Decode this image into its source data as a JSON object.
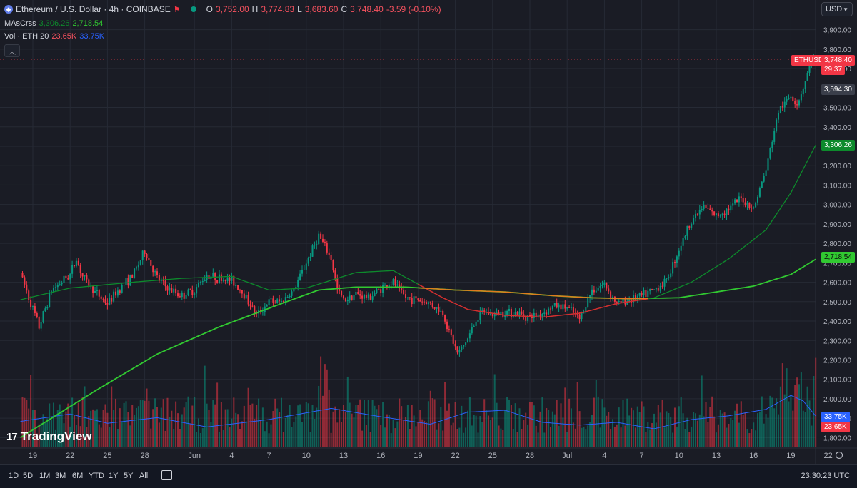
{
  "header": {
    "symbol_title": "Ethereum / U.S. Dollar · 4h · COINBASE",
    "ohlc": {
      "o_label": "O",
      "o": "3,752.00",
      "h_label": "H",
      "h": "3,774.83",
      "l_label": "L",
      "l": "3,683.60",
      "c_label": "C",
      "c": "3,748.40",
      "change": "-3.59 (-0.10%)"
    },
    "ma_indicator": {
      "label": "MAsCrss",
      "fast": "3,306.26",
      "slow": "2,718.54"
    },
    "vol_indicator": {
      "label": "Vol · ETH 20",
      "value": "23.65K",
      "ma": "33.75K"
    }
  },
  "currency_selector": "USD",
  "logo_text": "TradingView",
  "price_axis_labels": {
    "symbol_tag": "ETHUSD",
    "last_price": "3,748.40",
    "countdown": "29:37",
    "crosshair_price": "3,594.30",
    "ma_fast_value": "3,306.26",
    "ma_slow_value": "2,718.54",
    "vol_ma_value": "33.75K",
    "vol_value": "23.65K"
  },
  "timeframes": [
    "1D",
    "5D",
    "1M",
    "3M",
    "6M",
    "YTD",
    "1Y",
    "5Y",
    "All"
  ],
  "clock": "23:30:23 UTC",
  "colors": {
    "bg": "#1a1c25",
    "up": "#089981",
    "down": "#f23645",
    "ma_fast": "#0d8a2c",
    "ma_slow": "#31c931",
    "vol_ma": "#2962ff",
    "ma_cross_red": "#d32f2f",
    "ma_cross_orange": "#e07b1e"
  },
  "chart_data": {
    "type": "candlestick",
    "interval": "4h",
    "y_axis": {
      "min": 1750,
      "max": 3950,
      "ticks": [
        1800,
        1900,
        2000,
        2100,
        2200,
        2300,
        2400,
        2500,
        2600,
        2700,
        2800,
        2900,
        3000,
        3100,
        3200,
        3300,
        3400,
        3500,
        3600,
        3700,
        3800,
        3900
      ],
      "tick_labels": [
        "1,800.00",
        "1,900.00",
        "2,000.00",
        "2,100.00",
        "2,200.00",
        "2,300.00",
        "2,400.00",
        "2,500.00",
        "2,600.00",
        "2,700.00",
        "2,800.00",
        "2,900.00",
        "3,000.00",
        "3,100.00",
        "3,200.00",
        "3,300.00",
        "3,400.00",
        "3,500.00",
        "3,600.00",
        "3,700.00",
        "3,800.00",
        "3,900.00"
      ]
    },
    "x_axis": {
      "ticks": [
        {
          "label": "19",
          "day": 0
        },
        {
          "label": "22",
          "day": 3
        },
        {
          "label": "25",
          "day": 6
        },
        {
          "label": "28",
          "day": 9
        },
        {
          "label": "Jun",
          "day": 13
        },
        {
          "label": "4",
          "day": 16
        },
        {
          "label": "7",
          "day": 19
        },
        {
          "label": "10",
          "day": 22
        },
        {
          "label": "13",
          "day": 25
        },
        {
          "label": "16",
          "day": 28
        },
        {
          "label": "19",
          "day": 31
        },
        {
          "label": "22",
          "day": 34
        },
        {
          "label": "25",
          "day": 37
        },
        {
          "label": "28",
          "day": 40
        },
        {
          "label": "Jul",
          "day": 43
        },
        {
          "label": "4",
          "day": 46
        },
        {
          "label": "7",
          "day": 49
        },
        {
          "label": "10",
          "day": 52
        },
        {
          "label": "13",
          "day": 55
        },
        {
          "label": "16",
          "day": 58
        },
        {
          "label": "19",
          "day": 61
        },
        {
          "label": "22",
          "day": 64
        }
      ]
    },
    "price_anchors": [
      {
        "day": -1.0,
        "price": 2650
      },
      {
        "day": 0.0,
        "price": 2460
      },
      {
        "day": 0.5,
        "price": 2370
      },
      {
        "day": 1.5,
        "price": 2560
      },
      {
        "day": 3.0,
        "price": 2640
      },
      {
        "day": 3.5,
        "price": 2720
      },
      {
        "day": 4.0,
        "price": 2630
      },
      {
        "day": 5.0,
        "price": 2550
      },
      {
        "day": 6.0,
        "price": 2490
      },
      {
        "day": 7.0,
        "price": 2570
      },
      {
        "day": 8.0,
        "price": 2630
      },
      {
        "day": 9.0,
        "price": 2760
      },
      {
        "day": 10.0,
        "price": 2620
      },
      {
        "day": 11.0,
        "price": 2560
      },
      {
        "day": 12.0,
        "price": 2530
      },
      {
        "day": 13.0,
        "price": 2560
      },
      {
        "day": 14.0,
        "price": 2640
      },
      {
        "day": 15.0,
        "price": 2620
      },
      {
        "day": 16.0,
        "price": 2610
      },
      {
        "day": 17.0,
        "price": 2540
      },
      {
        "day": 18.0,
        "price": 2430
      },
      {
        "day": 19.0,
        "price": 2500
      },
      {
        "day": 20.0,
        "price": 2500
      },
      {
        "day": 21.0,
        "price": 2560
      },
      {
        "day": 22.0,
        "price": 2700
      },
      {
        "day": 23.0,
        "price": 2840
      },
      {
        "day": 24.0,
        "price": 2720
      },
      {
        "day": 24.5,
        "price": 2560
      },
      {
        "day": 25.0,
        "price": 2510
      },
      {
        "day": 26.0,
        "price": 2540
      },
      {
        "day": 27.0,
        "price": 2520
      },
      {
        "day": 28.0,
        "price": 2570
      },
      {
        "day": 29.0,
        "price": 2600
      },
      {
        "day": 30.0,
        "price": 2520
      },
      {
        "day": 31.0,
        "price": 2510
      },
      {
        "day": 32.0,
        "price": 2490
      },
      {
        "day": 33.0,
        "price": 2440
      },
      {
        "day": 33.6,
        "price": 2330
      },
      {
        "day": 34.2,
        "price": 2230
      },
      {
        "day": 35.0,
        "price": 2310
      },
      {
        "day": 35.7,
        "price": 2410
      },
      {
        "day": 36.3,
        "price": 2450
      },
      {
        "day": 37.0,
        "price": 2430
      },
      {
        "day": 38.0,
        "price": 2450
      },
      {
        "day": 39.0,
        "price": 2440
      },
      {
        "day": 40.0,
        "price": 2420
      },
      {
        "day": 41.0,
        "price": 2440
      },
      {
        "day": 42.0,
        "price": 2480
      },
      {
        "day": 43.0,
        "price": 2470
      },
      {
        "day": 44.0,
        "price": 2410
      },
      {
        "day": 45.0,
        "price": 2560
      },
      {
        "day": 46.0,
        "price": 2590
      },
      {
        "day": 47.0,
        "price": 2490
      },
      {
        "day": 48.0,
        "price": 2510
      },
      {
        "day": 49.0,
        "price": 2530
      },
      {
        "day": 50.0,
        "price": 2560
      },
      {
        "day": 51.0,
        "price": 2610
      },
      {
        "day": 52.0,
        "price": 2770
      },
      {
        "day": 53.0,
        "price": 2920
      },
      {
        "day": 54.0,
        "price": 2990
      },
      {
        "day": 55.0,
        "price": 2940
      },
      {
        "day": 56.0,
        "price": 2980
      },
      {
        "day": 57.0,
        "price": 3030
      },
      {
        "day": 58.0,
        "price": 2980
      },
      {
        "day": 59.0,
        "price": 3180
      },
      {
        "day": 60.0,
        "price": 3480
      },
      {
        "day": 61.0,
        "price": 3560
      },
      {
        "day": 61.5,
        "price": 3520
      },
      {
        "day": 62.0,
        "price": 3600
      },
      {
        "day": 62.7,
        "price": 3760
      },
      {
        "day": 63.0,
        "price": 3748
      }
    ],
    "ma_fast_anchors": [
      {
        "day": -1.0,
        "price": 2510
      },
      {
        "day": 3.0,
        "price": 2570
      },
      {
        "day": 8.0,
        "price": 2600
      },
      {
        "day": 12.0,
        "price": 2620
      },
      {
        "day": 16.0,
        "price": 2630
      },
      {
        "day": 19.0,
        "price": 2560
      },
      {
        "day": 22.0,
        "price": 2570
      },
      {
        "day": 26.0,
        "price": 2650
      },
      {
        "day": 29.0,
        "price": 2660
      },
      {
        "day": 31.0,
        "price": 2590
      },
      {
        "day": 33.0,
        "price": 2520
      },
      {
        "day": 35.0,
        "price": 2460
      },
      {
        "day": 38.0,
        "price": 2430
      },
      {
        "day": 41.0,
        "price": 2420
      },
      {
        "day": 44.0,
        "price": 2440
      },
      {
        "day": 47.0,
        "price": 2490
      },
      {
        "day": 50.0,
        "price": 2520
      },
      {
        "day": 53.0,
        "price": 2600
      },
      {
        "day": 56.0,
        "price": 2720
      },
      {
        "day": 59.0,
        "price": 2870
      },
      {
        "day": 61.0,
        "price": 3060
      },
      {
        "day": 63.0,
        "price": 3306
      }
    ],
    "ma_slow_anchors": [
      {
        "day": -1.0,
        "price": 1800
      },
      {
        "day": 5.0,
        "price": 2040
      },
      {
        "day": 10.0,
        "price": 2230
      },
      {
        "day": 15.0,
        "price": 2370
      },
      {
        "day": 20.0,
        "price": 2490
      },
      {
        "day": 23.0,
        "price": 2560
      },
      {
        "day": 26.0,
        "price": 2575
      },
      {
        "day": 30.0,
        "price": 2575
      },
      {
        "day": 34.0,
        "price": 2560
      },
      {
        "day": 38.0,
        "price": 2550
      },
      {
        "day": 42.0,
        "price": 2530
      },
      {
        "day": 45.0,
        "price": 2520
      },
      {
        "day": 48.0,
        "price": 2515
      },
      {
        "day": 52.0,
        "price": 2520
      },
      {
        "day": 55.0,
        "price": 2550
      },
      {
        "day": 58.0,
        "price": 2580
      },
      {
        "day": 61.0,
        "price": 2640
      },
      {
        "day": 63.0,
        "price": 2718
      }
    ],
    "volume_max": 100000,
    "volume_ma_anchors": [
      {
        "day": -1.0,
        "value": 28000
      },
      {
        "day": 3.0,
        "value": 36000
      },
      {
        "day": 6.0,
        "value": 26000
      },
      {
        "day": 10.0,
        "value": 32000
      },
      {
        "day": 14.0,
        "value": 22000
      },
      {
        "day": 19.0,
        "value": 30000
      },
      {
        "day": 24.0,
        "value": 42000
      },
      {
        "day": 28.0,
        "value": 33000
      },
      {
        "day": 32.0,
        "value": 25000
      },
      {
        "day": 35.0,
        "value": 38000
      },
      {
        "day": 38.0,
        "value": 40000
      },
      {
        "day": 41.0,
        "value": 27000
      },
      {
        "day": 44.0,
        "value": 24000
      },
      {
        "day": 47.0,
        "value": 27000
      },
      {
        "day": 50.0,
        "value": 20000
      },
      {
        "day": 53.0,
        "value": 30000
      },
      {
        "day": 56.0,
        "value": 34000
      },
      {
        "day": 59.0,
        "value": 41000
      },
      {
        "day": 61.0,
        "value": 56000
      },
      {
        "day": 62.0,
        "value": 50000
      },
      {
        "day": 63.0,
        "value": 33750
      }
    ],
    "last_price": 3748.4,
    "crosshair_price": 3594.3
  }
}
